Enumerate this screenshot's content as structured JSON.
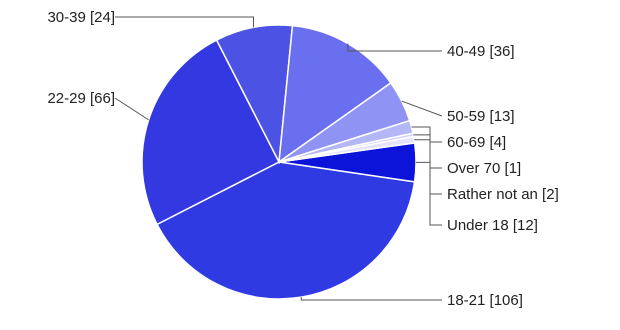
{
  "chart_data": {
    "type": "pie",
    "slices": [
      {
        "name": "Under 18",
        "value": 12,
        "label": "Under 18 [12]",
        "color": "#0b14d8"
      },
      {
        "name": "18-21",
        "value": 106,
        "label": "18-21 [106]",
        "color": "#2f3ae3"
      },
      {
        "name": "22-29",
        "value": 66,
        "label": "22-29 [66]",
        "color": "#3338e0"
      },
      {
        "name": "30-39",
        "value": 24,
        "label": "30-39 [24]",
        "color": "#4b52e4"
      },
      {
        "name": "40-49",
        "value": 36,
        "label": "40-49 [36]",
        "color": "#6a6ff0"
      },
      {
        "name": "50-59",
        "value": 13,
        "label": "50-59 [13]",
        "color": "#8f93f3"
      },
      {
        "name": "60-69",
        "value": 4,
        "label": "60-69 [4]",
        "color": "#b3b6f7"
      },
      {
        "name": "Over 70",
        "value": 1,
        "label": "Over 70 [1]",
        "color": "#cfd1fa"
      },
      {
        "name": "Rather not an",
        "value": 2,
        "label": "Rather not an [2]",
        "color": "#e4e5fc"
      }
    ],
    "legend": "none",
    "grid": false
  }
}
